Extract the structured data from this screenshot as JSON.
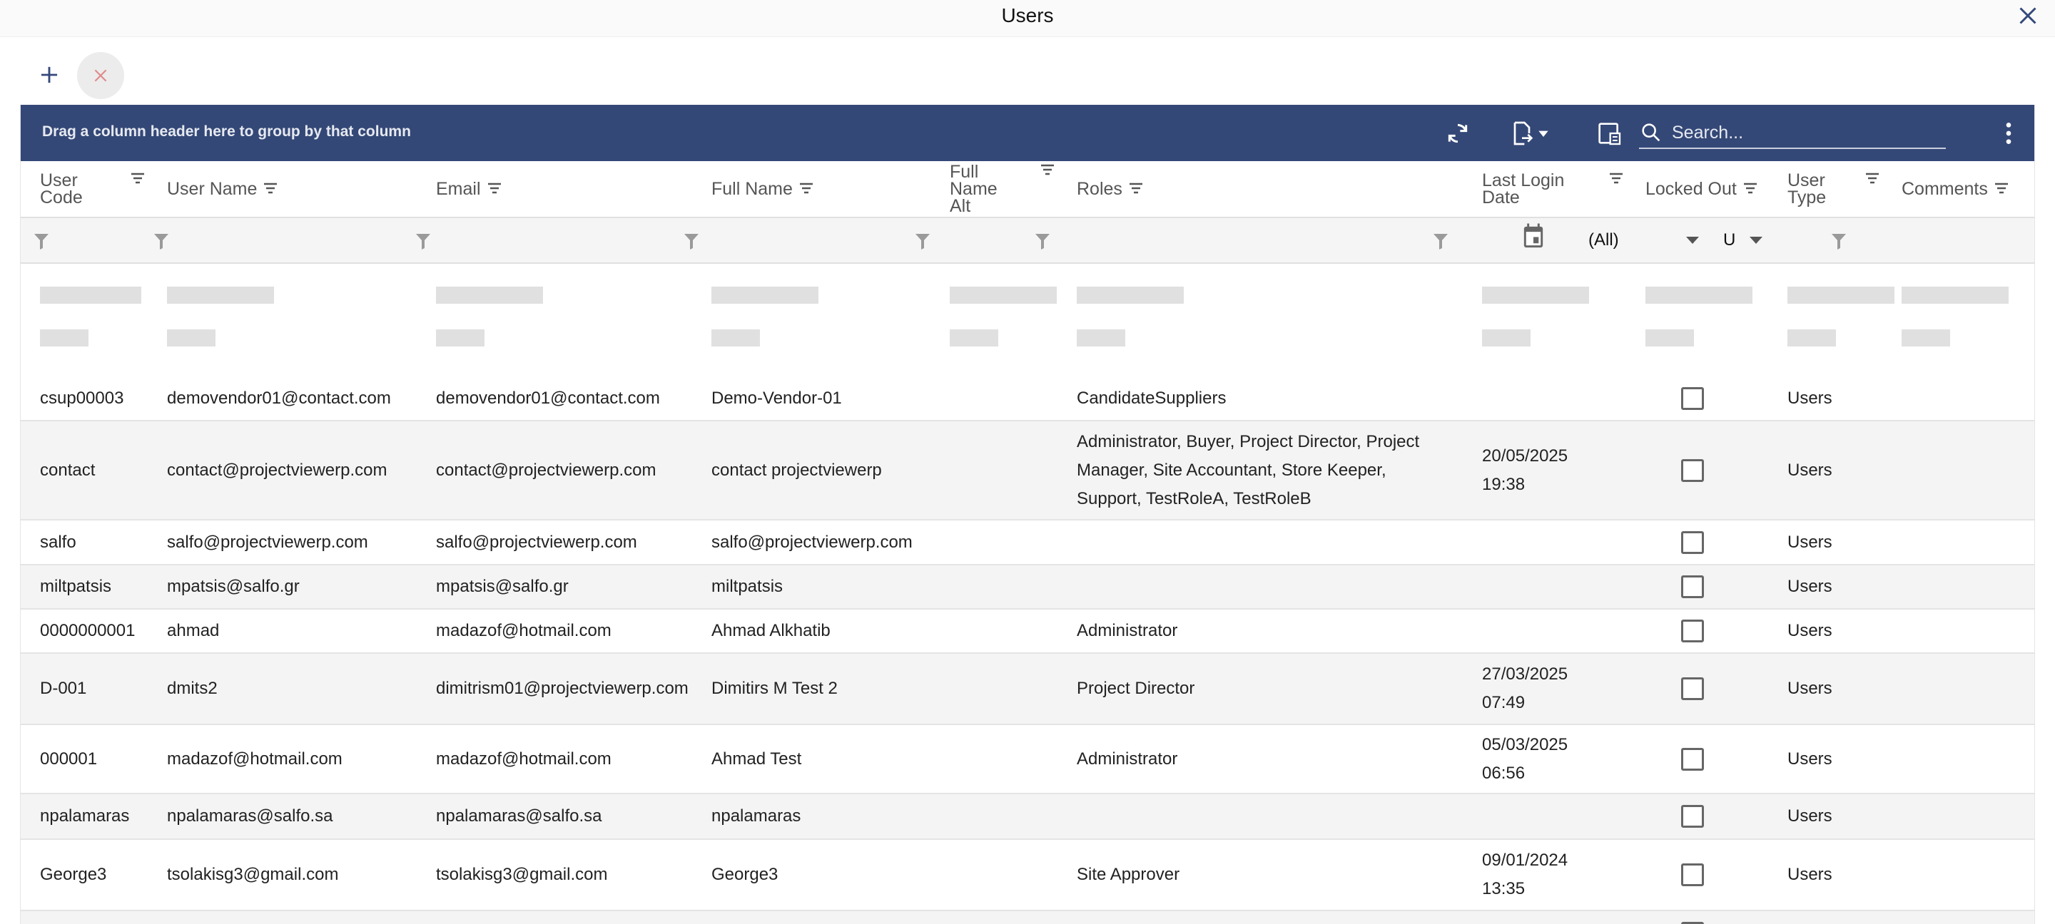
{
  "window": {
    "title": "Users",
    "close_icon": "close-icon"
  },
  "toolbar": {
    "add_icon": "plus-icon",
    "delete_icon": "close-icon"
  },
  "grid_toolbar": {
    "group_hint": "Drag a column header here to group by that column",
    "search_placeholder": "Search...",
    "search_value": "",
    "accent": "#344877"
  },
  "columns": [
    "User Code",
    "User Name",
    "Email",
    "Full Name",
    "Full Name Alt",
    "Roles",
    "Last Login Date",
    "Locked Out",
    "User Type",
    "Comments"
  ],
  "filters": {
    "locked_out": "(All)",
    "user_type": "U"
  },
  "rows": [
    {
      "code": "csup00003",
      "user_name": "demovendor01@contact.com",
      "email": "demovendor01@contact.com",
      "full_name": "Demo-Vendor-01",
      "full_name_alt": "",
      "roles": "CandidateSuppliers",
      "last_login_date": "",
      "last_login_time": "",
      "locked_out": false,
      "user_type": "Users",
      "comments": ""
    },
    {
      "code": "contact",
      "user_name": "contact@projectviewerp.com",
      "email": "contact@projectviewerp.com",
      "full_name": "contact projectviewerp",
      "full_name_alt": "",
      "roles": "Administrator, Buyer, Project Director, Project Manager, Site Accountant, Store Keeper, Support, TestRoleA, TestRoleB",
      "last_login_date": "20/05/2025",
      "last_login_time": "19:38",
      "locked_out": false,
      "user_type": "Users",
      "comments": ""
    },
    {
      "code": "salfo",
      "user_name": "salfo@projectviewerp.com",
      "email": "salfo@projectviewerp.com",
      "full_name": "salfo@projectviewerp.com",
      "full_name_alt": "",
      "roles": "",
      "last_login_date": "",
      "last_login_time": "",
      "locked_out": false,
      "user_type": "Users",
      "comments": ""
    },
    {
      "code": "miltpatsis",
      "user_name": "mpatsis@salfo.gr",
      "email": "mpatsis@salfo.gr",
      "full_name": "miltpatsis",
      "full_name_alt": "",
      "roles": "",
      "last_login_date": "",
      "last_login_time": "",
      "locked_out": false,
      "user_type": "Users",
      "comments": ""
    },
    {
      "code": "0000000001",
      "user_name": "ahmad",
      "email": "madazof@hotmail.com",
      "full_name": "Ahmad Alkhatib",
      "full_name_alt": "",
      "roles": "Administrator",
      "last_login_date": "",
      "last_login_time": "",
      "locked_out": false,
      "user_type": "Users",
      "comments": ""
    },
    {
      "code": "D-001",
      "user_name": "dmits2",
      "email": "dimitrism01@projectviewerp.com",
      "full_name": "Dimitirs M Test 2",
      "full_name_alt": "",
      "roles": "Project Director",
      "last_login_date": "27/03/2025",
      "last_login_time": "07:49",
      "locked_out": false,
      "user_type": "Users",
      "comments": ""
    },
    {
      "code": "000001",
      "user_name": "madazof@hotmail.com",
      "email": "madazof@hotmail.com",
      "full_name": "Ahmad Test",
      "full_name_alt": "",
      "roles": "Administrator",
      "last_login_date": "05/03/2025",
      "last_login_time": "06:56",
      "locked_out": false,
      "user_type": "Users",
      "comments": ""
    },
    {
      "code": "npalamaras",
      "user_name": "npalamaras@salfo.sa",
      "email": "npalamaras@salfo.sa",
      "full_name": "npalamaras",
      "full_name_alt": "",
      "roles": "",
      "last_login_date": "",
      "last_login_time": "",
      "locked_out": false,
      "user_type": "Users",
      "comments": ""
    },
    {
      "code": "George3",
      "user_name": "tsolakisg3@gmail.com",
      "email": "tsolakisg3@gmail.com",
      "full_name": "George3",
      "full_name_alt": "",
      "roles": "Site Approver",
      "last_login_date": "09/01/2024",
      "last_login_time": "13:35",
      "locked_out": false,
      "user_type": "Users",
      "comments": ""
    }
  ]
}
